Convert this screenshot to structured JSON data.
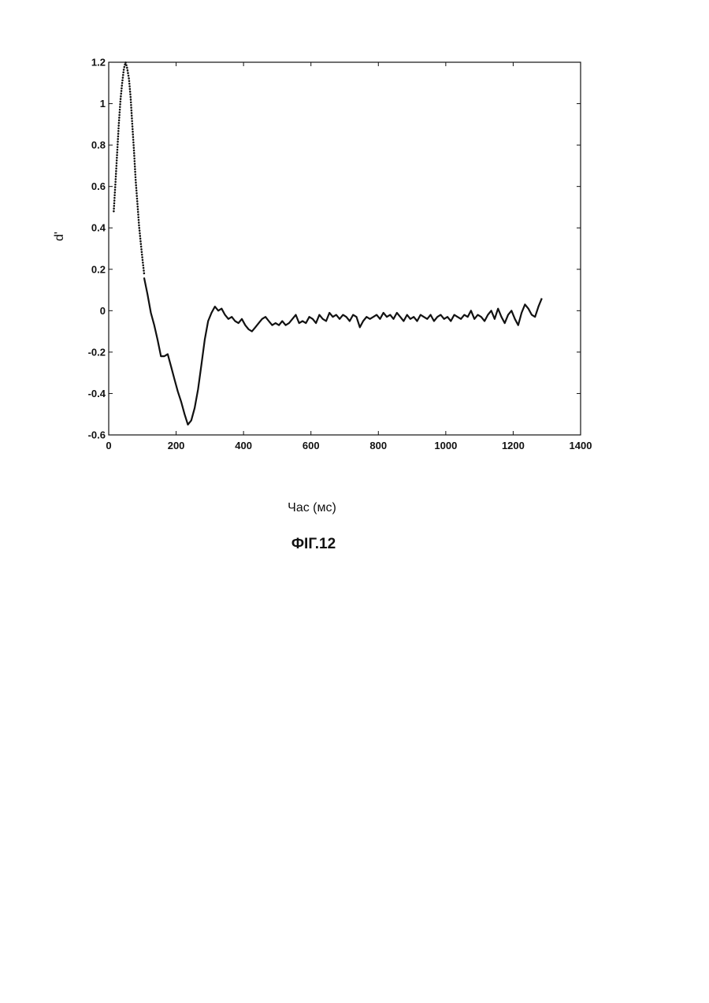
{
  "chart_data": {
    "type": "line",
    "title": "",
    "xlabel": "Час (мс)",
    "ylabel": "d'",
    "caption": "ФІГ.12",
    "xlim": [
      0,
      1400
    ],
    "ylim": [
      -0.6,
      1.2
    ],
    "xticks": [
      0,
      200,
      400,
      600,
      800,
      1000,
      1200,
      1400
    ],
    "yticks": [
      -0.6,
      -0.4,
      -0.2,
      0,
      0.2,
      0.4,
      0.6,
      0.8,
      1,
      1.2
    ],
    "xtick_labels": [
      "0",
      "200",
      "400",
      "600",
      "800",
      "1000",
      "1200",
      "1400"
    ],
    "ytick_labels": [
      "-0.6",
      "-0.4",
      "-0.2",
      "0",
      "0.2",
      "0.4",
      "0.6",
      "0.8",
      "1",
      "1.2"
    ],
    "grid": false,
    "series": [
      {
        "style": "dotted",
        "x": [
          15,
          20,
          25,
          30,
          35,
          40,
          45,
          50,
          55,
          60,
          65,
          70,
          75,
          80,
          85,
          90,
          95,
          100,
          105
        ],
        "y": [
          0.48,
          0.62,
          0.76,
          0.9,
          1.02,
          1.1,
          1.17,
          1.2,
          1.17,
          1.12,
          1.03,
          0.9,
          0.77,
          0.63,
          0.52,
          0.41,
          0.33,
          0.25,
          0.18
        ]
      },
      {
        "style": "solid",
        "x": [
          105,
          115,
          125,
          135,
          145,
          155,
          165,
          175,
          185,
          195,
          205,
          215,
          225,
          235,
          245,
          255,
          265,
          275,
          285,
          295,
          305,
          315,
          325,
          335,
          345,
          355,
          365,
          375,
          385,
          395,
          405,
          415,
          425,
          435,
          445,
          455,
          465,
          475,
          485,
          495,
          505,
          515,
          525,
          535,
          545,
          555,
          565,
          575,
          585,
          595,
          605,
          615,
          625,
          635,
          645,
          655,
          665,
          675,
          685,
          695,
          705,
          715,
          725,
          735,
          745,
          755,
          765,
          775,
          785,
          795,
          805,
          815,
          825,
          835,
          845,
          855,
          865,
          875,
          885,
          895,
          905,
          915,
          925,
          935,
          945,
          955,
          965,
          975,
          985,
          995,
          1005,
          1015,
          1025,
          1035,
          1045,
          1055,
          1065,
          1075,
          1085,
          1095,
          1105,
          1115,
          1125,
          1135,
          1145,
          1155,
          1165,
          1175,
          1185,
          1195,
          1205,
          1215,
          1225,
          1235,
          1245,
          1255,
          1265,
          1275,
          1285
        ],
        "y": [
          0.16,
          0.08,
          -0.01,
          -0.07,
          -0.14,
          -0.22,
          -0.22,
          -0.21,
          -0.27,
          -0.33,
          -0.39,
          -0.44,
          -0.5,
          -0.55,
          -0.53,
          -0.47,
          -0.38,
          -0.26,
          -0.14,
          -0.05,
          -0.01,
          0.02,
          0.0,
          0.01,
          -0.02,
          -0.04,
          -0.03,
          -0.05,
          -0.06,
          -0.04,
          -0.07,
          -0.09,
          -0.1,
          -0.08,
          -0.06,
          -0.04,
          -0.03,
          -0.05,
          -0.07,
          -0.06,
          -0.07,
          -0.05,
          -0.07,
          -0.06,
          -0.04,
          -0.02,
          -0.06,
          -0.05,
          -0.06,
          -0.03,
          -0.04,
          -0.06,
          -0.02,
          -0.04,
          -0.05,
          -0.01,
          -0.03,
          -0.02,
          -0.04,
          -0.02,
          -0.03,
          -0.05,
          -0.02,
          -0.03,
          -0.08,
          -0.05,
          -0.03,
          -0.04,
          -0.03,
          -0.02,
          -0.04,
          -0.01,
          -0.03,
          -0.02,
          -0.04,
          -0.01,
          -0.03,
          -0.05,
          -0.02,
          -0.04,
          -0.03,
          -0.05,
          -0.02,
          -0.03,
          -0.04,
          -0.02,
          -0.05,
          -0.03,
          -0.02,
          -0.04,
          -0.03,
          -0.05,
          -0.02,
          -0.03,
          -0.04,
          -0.02,
          -0.03,
          0.0,
          -0.04,
          -0.02,
          -0.03,
          -0.05,
          -0.02,
          0.0,
          -0.04,
          0.01,
          -0.03,
          -0.06,
          -0.02,
          0.0,
          -0.04,
          -0.07,
          -0.01,
          0.03,
          0.01,
          -0.02,
          -0.03,
          0.02,
          0.06
        ]
      }
    ]
  }
}
